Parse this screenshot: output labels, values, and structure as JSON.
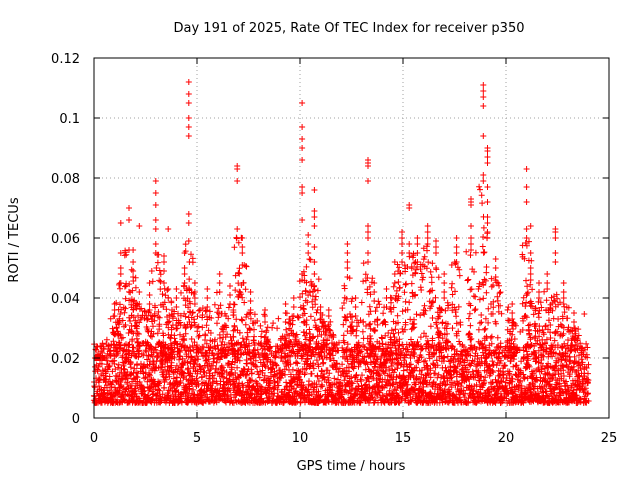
{
  "chart_data": {
    "type": "scatter",
    "title": "Day 191 of 2025, Rate Of TEC Index for receiver p350",
    "xlabel": "GPS time / hours",
    "ylabel": "ROTI / TECUs",
    "xlim": [
      0,
      25
    ],
    "ylim": [
      0,
      0.12
    ],
    "xticks": [
      0,
      5,
      10,
      15,
      20,
      25
    ],
    "xtick_labels": [
      "0",
      "5",
      "10",
      "15",
      "20",
      "25"
    ],
    "yticks": [
      0,
      0.02,
      0.04,
      0.06,
      0.08,
      0.1,
      0.12
    ],
    "ytick_labels": [
      "0",
      "0.02",
      "0.04",
      "0.06",
      "0.08",
      "0.1",
      "0.12"
    ],
    "grid": true,
    "marker": "plus",
    "color": "#ff0000",
    "baseline": {
      "x_start": 0,
      "x_end": 24,
      "step": 0.02,
      "min": 0.005,
      "max": 0.025
    },
    "spikes": [
      {
        "x": 0.3,
        "y": [
          0.024,
          0.02
        ]
      },
      {
        "x": 1.0,
        "y": [
          0.038,
          0.036,
          0.034
        ]
      },
      {
        "x": 1.3,
        "y": [
          0.065,
          0.055,
          0.05,
          0.048,
          0.045
        ]
      },
      {
        "x": 1.7,
        "y": [
          0.07,
          0.066,
          0.056
        ]
      },
      {
        "x": 1.9,
        "y": [
          0.056,
          0.052,
          0.049,
          0.047
        ]
      },
      {
        "x": 2.2,
        "y": [
          0.064,
          0.042,
          0.038
        ]
      },
      {
        "x": 2.7,
        "y": [
          0.045,
          0.041,
          0.038,
          0.036
        ]
      },
      {
        "x": 3.0,
        "y": [
          0.079,
          0.075,
          0.071,
          0.066,
          0.063,
          0.058,
          0.055
        ]
      },
      {
        "x": 3.4,
        "y": [
          0.054,
          0.052,
          0.049,
          0.045
        ]
      },
      {
        "x": 3.6,
        "y": [
          0.063,
          0.043,
          0.04
        ]
      },
      {
        "x": 4.0,
        "y": [
          0.043,
          0.04,
          0.037
        ]
      },
      {
        "x": 4.4,
        "y": [
          0.055,
          0.05,
          0.048,
          0.045
        ]
      },
      {
        "x": 4.6,
        "y": [
          0.112,
          0.108,
          0.105,
          0.1,
          0.097,
          0.094,
          0.068,
          0.065,
          0.059
        ]
      },
      {
        "x": 4.9,
        "y": [
          0.045,
          0.042,
          0.04,
          0.038
        ]
      },
      {
        "x": 5.5,
        "y": [
          0.043,
          0.04,
          0.037
        ]
      },
      {
        "x": 6.1,
        "y": [
          0.048,
          0.045,
          0.042
        ]
      },
      {
        "x": 6.6,
        "y": [
          0.044,
          0.041,
          0.038
        ]
      },
      {
        "x": 6.95,
        "y": [
          0.084,
          0.083,
          0.079,
          0.063
        ]
      },
      {
        "x": 7.2,
        "y": [
          0.06,
          0.057,
          0.055,
          0.051
        ]
      },
      {
        "x": 7.6,
        "y": [
          0.042,
          0.039,
          0.036
        ]
      },
      {
        "x": 8.3,
        "y": [
          0.036,
          0.034,
          0.032
        ]
      },
      {
        "x": 9.3,
        "y": [
          0.038,
          0.035,
          0.032
        ]
      },
      {
        "x": 9.7,
        "y": [
          0.04,
          0.037,
          0.034
        ]
      },
      {
        "x": 10.1,
        "y": [
          0.105,
          0.097,
          0.093,
          0.09,
          0.086,
          0.077,
          0.075,
          0.066,
          0.048,
          0.046
        ]
      },
      {
        "x": 10.4,
        "y": [
          0.061,
          0.058,
          0.055
        ]
      },
      {
        "x": 10.7,
        "y": [
          0.076,
          0.069,
          0.067,
          0.064,
          0.057,
          0.052,
          0.048
        ]
      },
      {
        "x": 11.0,
        "y": [
          0.037,
          0.035,
          0.033
        ]
      },
      {
        "x": 11.4,
        "y": [
          0.036,
          0.034,
          0.031
        ]
      },
      {
        "x": 12.3,
        "y": [
          0.058,
          0.055,
          0.052,
          0.05,
          0.047
        ]
      },
      {
        "x": 12.7,
        "y": [
          0.04,
          0.037,
          0.034
        ]
      },
      {
        "x": 13.3,
        "y": [
          0.086,
          0.085,
          0.084,
          0.079,
          0.064,
          0.062,
          0.06,
          0.055,
          0.052
        ]
      },
      {
        "x": 13.6,
        "y": [
          0.045,
          0.042,
          0.039
        ]
      },
      {
        "x": 14.2,
        "y": [
          0.043,
          0.04,
          0.037
        ]
      },
      {
        "x": 14.6,
        "y": [
          0.052,
          0.048,
          0.045
        ]
      },
      {
        "x": 14.95,
        "y": [
          0.062,
          0.06,
          0.058,
          0.055,
          0.052
        ]
      },
      {
        "x": 15.3,
        "y": [
          0.071,
          0.07,
          0.058,
          0.055
        ]
      },
      {
        "x": 15.7,
        "y": [
          0.06,
          0.058,
          0.055,
          0.052
        ]
      },
      {
        "x": 16.2,
        "y": [
          0.064,
          0.062,
          0.06,
          0.058
        ]
      },
      {
        "x": 16.6,
        "y": [
          0.059,
          0.057,
          0.055,
          0.05
        ]
      },
      {
        "x": 17.0,
        "y": [
          0.048,
          0.045,
          0.042,
          0.04
        ]
      },
      {
        "x": 17.6,
        "y": [
          0.06,
          0.057,
          0.055,
          0.052
        ]
      },
      {
        "x": 18.3,
        "y": [
          0.073,
          0.072,
          0.071,
          0.064,
          0.06,
          0.058,
          0.056
        ]
      },
      {
        "x": 18.9,
        "y": [
          0.111,
          0.109,
          0.107,
          0.104,
          0.094,
          0.081,
          0.079
        ]
      },
      {
        "x": 19.1,
        "y": [
          0.09,
          0.089,
          0.087,
          0.085,
          0.077,
          0.072,
          0.067,
          0.065,
          0.062
        ]
      },
      {
        "x": 19.5,
        "y": [
          0.053,
          0.05,
          0.047
        ]
      },
      {
        "x": 20.3,
        "y": [
          0.038,
          0.035,
          0.033
        ]
      },
      {
        "x": 21.0,
        "y": [
          0.083,
          0.077,
          0.072,
          0.063,
          0.06
        ]
      },
      {
        "x": 21.2,
        "y": [
          0.064,
          0.055,
          0.05,
          0.048,
          0.046
        ]
      },
      {
        "x": 21.6,
        "y": [
          0.045,
          0.042,
          0.04
        ]
      },
      {
        "x": 22.0,
        "y": [
          0.048,
          0.045,
          0.043
        ]
      },
      {
        "x": 22.4,
        "y": [
          0.063,
          0.062,
          0.06,
          0.055,
          0.052
        ]
      },
      {
        "x": 22.8,
        "y": [
          0.045,
          0.042,
          0.04,
          0.038
        ]
      },
      {
        "x": 23.3,
        "y": [
          0.035,
          0.032,
          0.03
        ]
      }
    ]
  }
}
